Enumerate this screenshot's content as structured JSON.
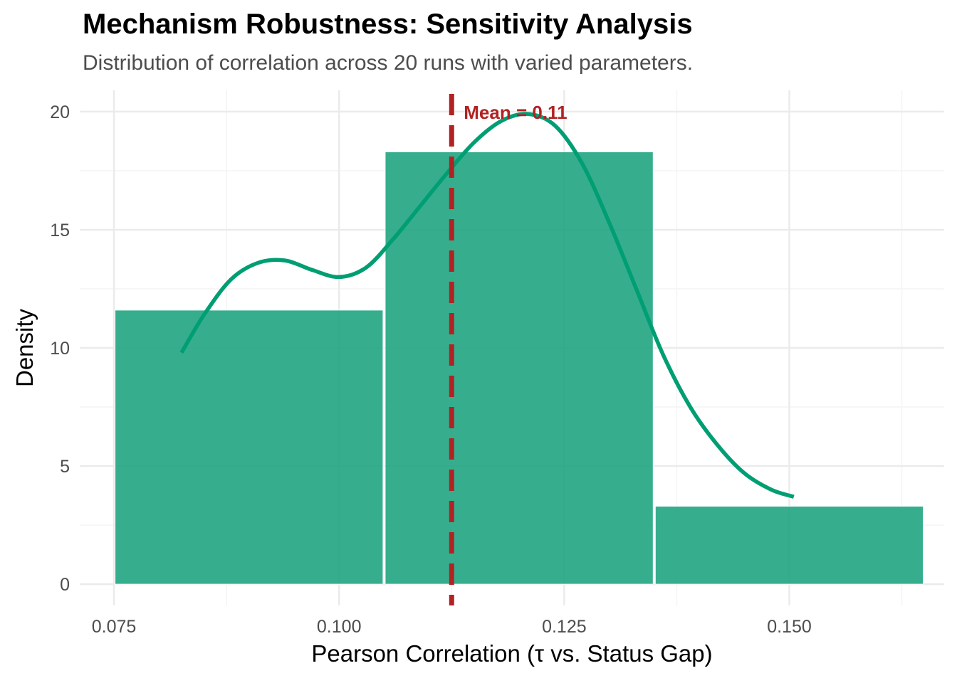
{
  "chart_data": {
    "type": "bar",
    "title": "Mechanism Robustness: Sensitivity Analysis",
    "subtitle": "Distribution of correlation across 20 runs with varied parameters.",
    "xlabel": "Pearson Correlation (τ vs. Status Gap)",
    "ylabel": "Density",
    "xlim": [
      0.0712,
      0.1672
    ],
    "ylim": [
      -0.9,
      20.9
    ],
    "x_ticks": [
      0.075,
      0.1,
      0.125,
      0.15
    ],
    "x_tick_labels": [
      "0.075",
      "0.100",
      "0.125",
      "0.150"
    ],
    "y_ticks": [
      0,
      5,
      10,
      15,
      20
    ],
    "y_tick_labels": [
      "0",
      "5",
      "10",
      "15",
      "20"
    ],
    "grid": true,
    "bins": [
      {
        "x0": 0.075,
        "x1": 0.105,
        "density": 11.6
      },
      {
        "x0": 0.105,
        "x1": 0.135,
        "density": 18.3
      },
      {
        "x0": 0.135,
        "x1": 0.165,
        "density": 3.3
      }
    ],
    "density_curve": {
      "x": [
        0.0825,
        0.085,
        0.088,
        0.091,
        0.094,
        0.097,
        0.1,
        0.103,
        0.106,
        0.109,
        0.112,
        0.115,
        0.118,
        0.121,
        0.124,
        0.127,
        0.13,
        0.133,
        0.136,
        0.139,
        0.142,
        0.145,
        0.148,
        0.1505
      ],
      "y": [
        9.8,
        11.4,
        12.9,
        13.6,
        13.7,
        13.3,
        13.0,
        13.4,
        14.6,
        16.0,
        17.4,
        18.7,
        19.6,
        19.9,
        19.4,
        17.8,
        15.3,
        12.5,
        9.7,
        7.5,
        5.9,
        4.7,
        4.0,
        3.7
      ]
    },
    "mean_line": {
      "x": 0.1125,
      "label": "Mean = 0.11"
    },
    "colors": {
      "bars": "#1aa37e",
      "curve": "#009e73",
      "mean_line": "#b22222",
      "grid_major": "#ebebeb",
      "grid_minor": "#f4f4f4"
    }
  }
}
